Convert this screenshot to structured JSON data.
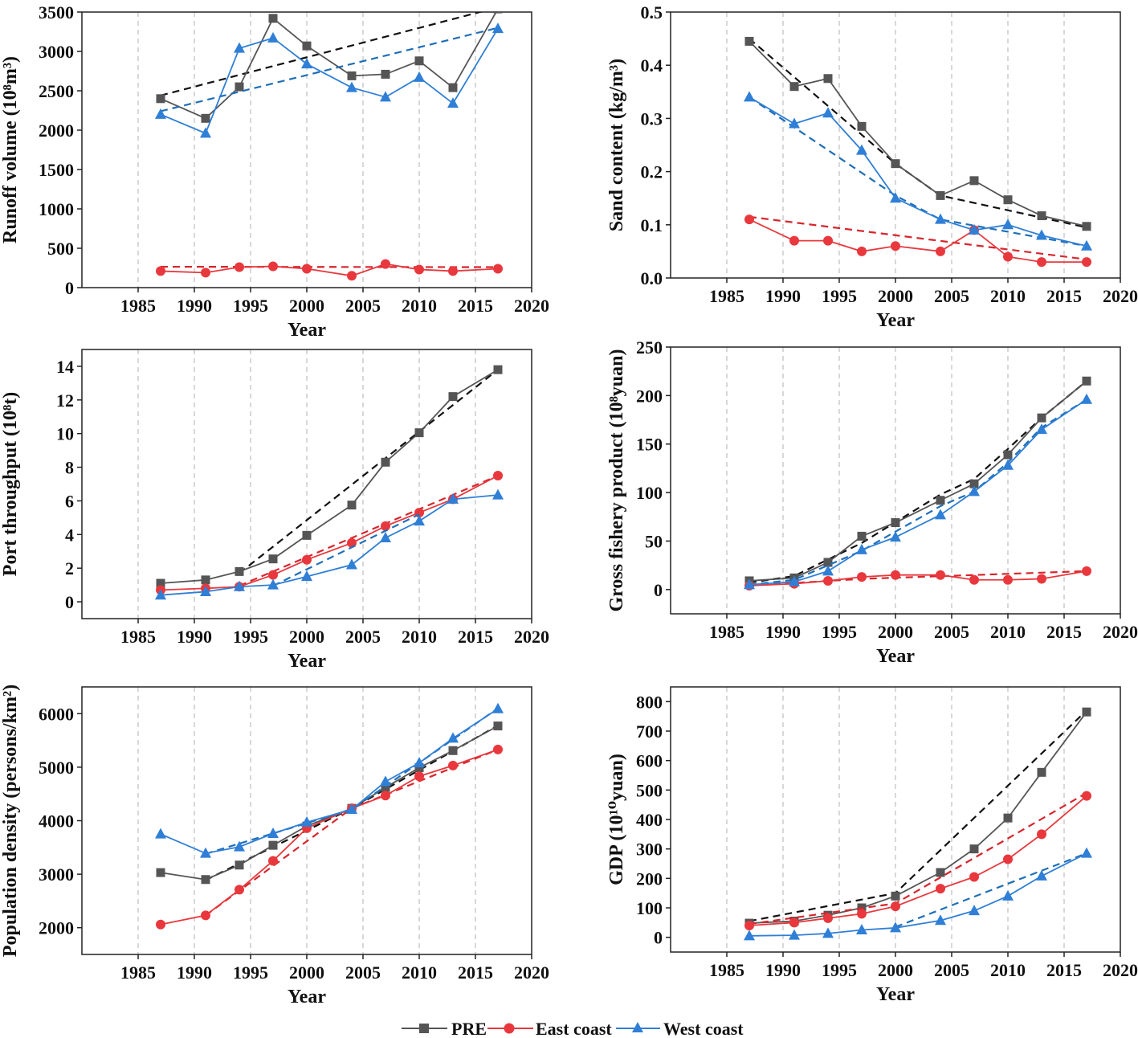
{
  "legend": [
    {
      "name": "PRE",
      "color": "#555555",
      "marker": "square"
    },
    {
      "name": "East coast",
      "color": "#e8383d",
      "marker": "circle"
    },
    {
      "name": "West coast",
      "color": "#2f7fd6",
      "marker": "triangle"
    }
  ],
  "colors": {
    "pre": "#555555",
    "east": "#e8383d",
    "west": "#2f7fd6",
    "trend_pre": "#111111",
    "trend_east": "#d6262d",
    "trend_west": "#1f6fb8",
    "grid": "#b0b0b0",
    "axis": "#222222"
  },
  "chart_data": [
    {
      "type": "line",
      "title": "",
      "xlabel": "Year",
      "ylabel": "Runoff volume (10⁸m³)",
      "xlim": [
        1980,
        2020
      ],
      "ylim": [
        0,
        3500
      ],
      "xticks": [
        1985,
        1990,
        1995,
        2000,
        2005,
        2010,
        2015,
        2020
      ],
      "yticks": [
        0,
        500,
        1000,
        1500,
        2000,
        2500,
        3000,
        3500
      ],
      "x": [
        1987,
        1991,
        1994,
        1997,
        2000,
        2004,
        2007,
        2010,
        2013,
        2017
      ],
      "series": [
        {
          "name": "PRE",
          "values": [
            2400,
            2150,
            2550,
            3420,
            3070,
            2690,
            2710,
            2880,
            2540,
            3540
          ],
          "trend": [
            2440,
            3560
          ]
        },
        {
          "name": "East coast",
          "values": [
            210,
            190,
            260,
            270,
            240,
            150,
            300,
            230,
            210,
            240
          ],
          "trend": [
            265,
            260
          ]
        },
        {
          "name": "West coast",
          "values": [
            2200,
            1960,
            3040,
            3170,
            2840,
            2540,
            2420,
            2670,
            2340,
            3290
          ],
          "trend": [
            2240,
            3300
          ]
        }
      ]
    },
    {
      "type": "line",
      "title": "",
      "xlabel": "Year",
      "ylabel": "Sand content (kg/m³)",
      "xlim": [
        1980,
        2020
      ],
      "ylim": [
        0.0,
        0.5
      ],
      "xticks": [
        1985,
        1990,
        1995,
        2000,
        2005,
        2010,
        2015,
        2020
      ],
      "yticks": [
        0.0,
        0.1,
        0.2,
        0.3,
        0.4,
        0.5
      ],
      "x": [
        1987,
        1991,
        1994,
        1997,
        2000,
        2004,
        2007,
        2010,
        2013,
        2017
      ],
      "series": [
        {
          "name": "PRE",
          "values": [
            0.445,
            0.36,
            0.375,
            0.285,
            0.215,
            0.155,
            0.183,
            0.147,
            0.117,
            0.097
          ],
          "trend_x": [
            1987,
            2000,
            2004,
            2017
          ],
          "trend": [
            0.45,
            0.215,
            0.155,
            0.095
          ]
        },
        {
          "name": "East coast",
          "values": [
            0.11,
            0.07,
            0.07,
            0.05,
            0.06,
            0.05,
            0.09,
            0.04,
            0.03,
            0.03
          ],
          "trend_x": [
            1987,
            2017
          ],
          "trend": [
            0.115,
            0.035
          ]
        },
        {
          "name": "West coast",
          "values": [
            0.34,
            0.29,
            0.31,
            0.24,
            0.15,
            0.11,
            0.09,
            0.1,
            0.08,
            0.06
          ],
          "trend_x": [
            1987,
            2000,
            2004,
            2017
          ],
          "trend": [
            0.34,
            0.155,
            0.11,
            0.06
          ]
        }
      ]
    },
    {
      "type": "line",
      "title": "",
      "xlabel": "Year",
      "ylabel": "Port throughput (10⁸t)",
      "xlim": [
        1980,
        2020
      ],
      "ylim": [
        -1,
        15
      ],
      "xticks": [
        1985,
        1990,
        1995,
        2000,
        2005,
        2010,
        2015,
        2020
      ],
      "yticks": [
        0,
        2,
        4,
        6,
        8,
        10,
        12,
        14
      ],
      "x": [
        1987,
        1991,
        1994,
        1997,
        2000,
        2004,
        2007,
        2010,
        2013,
        2017
      ],
      "series": [
        {
          "name": "PRE",
          "values": [
            1.1,
            1.3,
            1.8,
            2.55,
            3.95,
            5.75,
            8.3,
            10.05,
            12.2,
            13.8
          ],
          "trend_x": [
            1994,
            2017
          ],
          "trend": [
            1.7,
            13.8
          ]
        },
        {
          "name": "East coast",
          "values": [
            0.7,
            0.8,
            0.9,
            1.6,
            2.5,
            3.5,
            4.5,
            5.3,
            6.1,
            7.5
          ],
          "trend_x": [
            1994,
            2017
          ],
          "trend": [
            0.95,
            7.5
          ]
        },
        {
          "name": "West coast",
          "values": [
            0.4,
            0.6,
            0.9,
            1.0,
            1.5,
            2.2,
            3.8,
            4.8,
            6.1,
            6.35
          ],
          "trend_x": [
            1997,
            2010
          ],
          "trend": [
            0.95,
            5.2
          ]
        }
      ]
    },
    {
      "type": "line",
      "title": "",
      "xlabel": "Year",
      "ylabel": "Gross fishery product (10⁸yuan)",
      "xlim": [
        1980,
        2020
      ],
      "ylim": [
        -25,
        250
      ],
      "xticks": [
        1985,
        1990,
        1995,
        2000,
        2005,
        2010,
        2015,
        2020
      ],
      "yticks": [
        0,
        50,
        100,
        150,
        200,
        250
      ],
      "x": [
        1987,
        1991,
        1994,
        1997,
        2000,
        2004,
        2007,
        2010,
        2013,
        2017
      ],
      "series": [
        {
          "name": "PRE",
          "values": [
            9,
            12,
            28,
            55,
            69,
            92,
            109,
            139,
            177,
            215
          ],
          "trend_x": [
            1987,
            1991,
            1997,
            2004,
            2007,
            2010,
            2013,
            2017
          ],
          "trend": [
            7,
            14,
            48,
            98,
            114,
            145,
            177,
            215
          ]
        },
        {
          "name": "East coast",
          "values": [
            4,
            6,
            9,
            13,
            15,
            15,
            10,
            10,
            11,
            19
          ],
          "trend_x": [
            1987,
            1997,
            2017
          ],
          "trend": [
            4,
            11,
            19
          ]
        },
        {
          "name": "West coast",
          "values": [
            5,
            8,
            19,
            41,
            54,
            77,
            101,
            128,
            165,
            196
          ],
          "trend_x": [
            1987,
            1991,
            1997,
            2004,
            2007,
            2010,
            2013,
            2017
          ],
          "trend": [
            5,
            10,
            40,
            86,
            101,
            131,
            167,
            196
          ]
        }
      ]
    },
    {
      "type": "line",
      "title": "",
      "xlabel": "Year",
      "ylabel": "Population density (persons/km²)",
      "xlim": [
        1980,
        2020
      ],
      "ylim": [
        1500,
        6500
      ],
      "xticks": [
        1985,
        1990,
        1995,
        2000,
        2005,
        2010,
        2015,
        2020
      ],
      "yticks": [
        2000,
        3000,
        4000,
        5000,
        6000
      ],
      "x": [
        1987,
        1991,
        1994,
        1997,
        2000,
        2004,
        2007,
        2010,
        2013,
        2017
      ],
      "series": [
        {
          "name": "PRE",
          "values": [
            3030,
            2900,
            3170,
            3540,
            3900,
            4230,
            4620,
            4990,
            5310,
            5770
          ],
          "trend_x": [
            1991,
            2004,
            2017
          ],
          "trend": [
            2890,
            4230,
            5780
          ]
        },
        {
          "name": "East coast",
          "values": [
            2060,
            2230,
            2710,
            3250,
            3860,
            4230,
            4470,
            4830,
            5030,
            5330
          ],
          "trend_x": [
            1991,
            2004,
            2017
          ],
          "trend": [
            2230,
            4230,
            5330
          ]
        },
        {
          "name": "West coast",
          "values": [
            3750,
            3390,
            3510,
            3760,
            3970,
            4210,
            4730,
            5080,
            5540,
            6090
          ],
          "trend_x": [
            1991,
            2004,
            2017
          ],
          "trend": [
            3380,
            4210,
            6100
          ]
        }
      ]
    },
    {
      "type": "line",
      "title": "",
      "xlabel": "Year",
      "ylabel": "GDP (10¹⁰yuan)",
      "xlim": [
        1980,
        2020
      ],
      "ylim": [
        -50,
        850
      ],
      "xticks": [
        1985,
        1990,
        1995,
        2000,
        2005,
        2010,
        2015,
        2020
      ],
      "yticks": [
        0,
        100,
        200,
        300,
        400,
        500,
        600,
        700,
        800
      ],
      "x": [
        1987,
        1991,
        1994,
        1997,
        2000,
        2004,
        2007,
        2010,
        2013,
        2017
      ],
      "series": [
        {
          "name": "PRE",
          "values": [
            48,
            55,
            75,
            100,
            140,
            220,
            300,
            405,
            560,
            765
          ],
          "trend_x": [
            1987,
            2000,
            2017
          ],
          "trend": [
            55,
            150,
            770
          ]
        },
        {
          "name": "East coast",
          "values": [
            40,
            50,
            65,
            80,
            105,
            165,
            205,
            265,
            350,
            480
          ],
          "trend_x": [
            1987,
            2000,
            2017
          ],
          "trend": [
            45,
            115,
            490
          ]
        },
        {
          "name": "West coast",
          "values": [
            5,
            7,
            13,
            25,
            32,
            57,
            90,
            140,
            208,
            285
          ],
          "trend_x": [
            2000,
            2017
          ],
          "trend": [
            35,
            285
          ]
        }
      ]
    }
  ]
}
